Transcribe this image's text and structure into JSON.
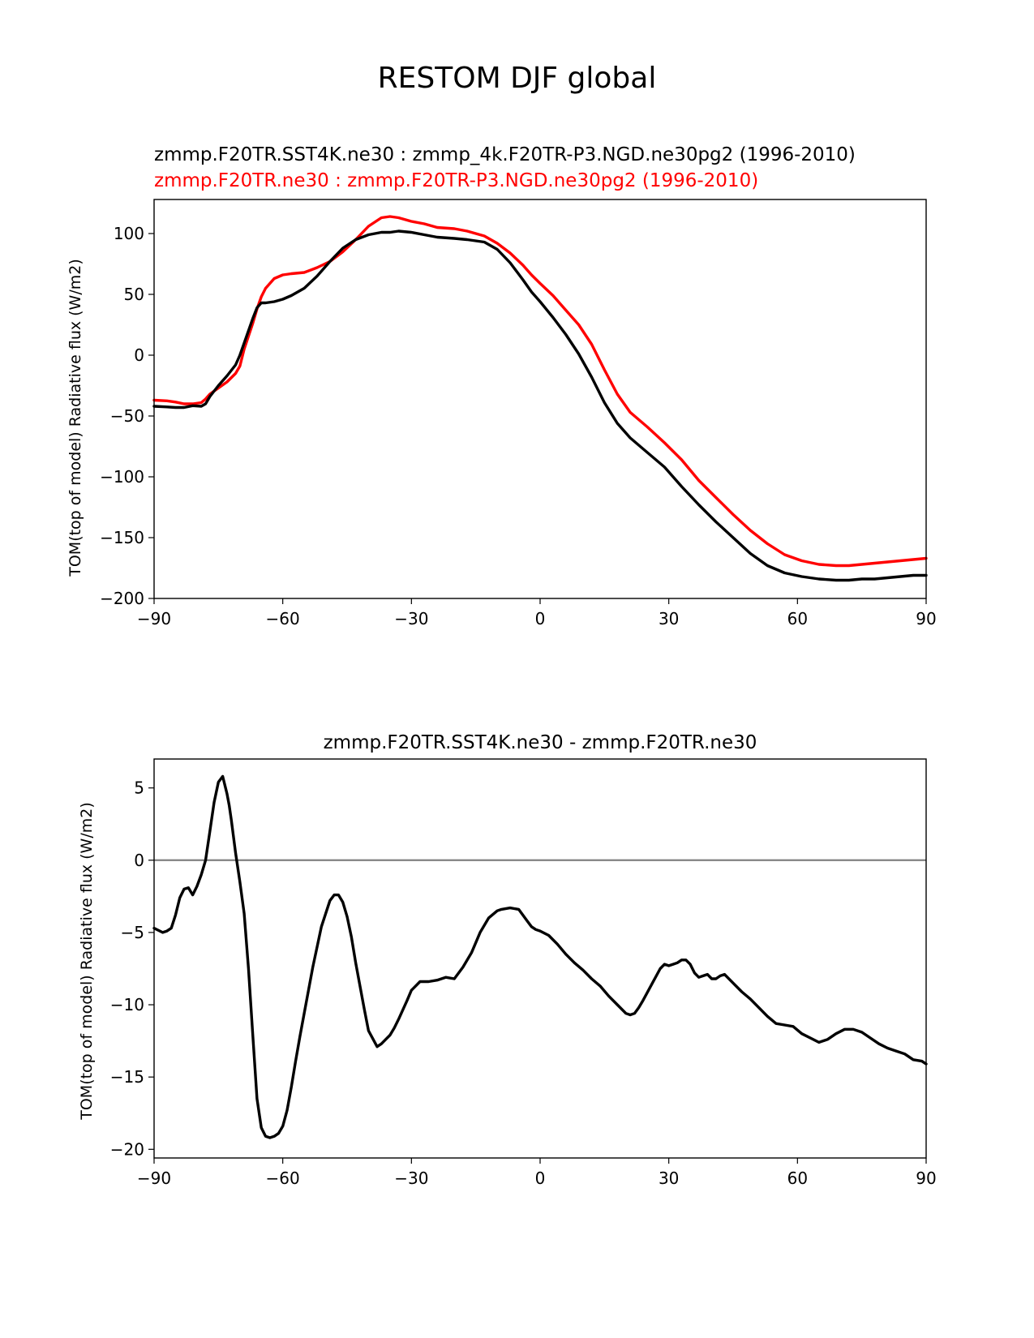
{
  "figure_title": "RESTOM DJF global",
  "colors": {
    "test": "#000000",
    "ref": "#ff0000",
    "zero_line": "#808080"
  },
  "chart_data": [
    {
      "type": "line",
      "subtitle_test": "zmmp.F20TR.SST4K.ne30 : zmmp_4k.F20TR-P3.NGD.ne30pg2 (1996-2010)",
      "subtitle_ref": "zmmp.F20TR.ne30 : zmmp.F20TR-P3.NGD.ne30pg2 (1996-2010)",
      "xlabel": "",
      "ylabel": "TOM(top of model) Radiative flux (W/m2)",
      "xlim": [
        -90,
        90
      ],
      "ylim": [
        -200,
        128
      ],
      "xticks": [
        "−90",
        "−60",
        "−30",
        "0",
        "30",
        "60",
        "90"
      ],
      "xtick_values": [
        -90,
        -60,
        -30,
        0,
        30,
        60,
        90
      ],
      "yticks": [
        "100",
        "50",
        "0",
        "−50",
        "−100",
        "−150",
        "−200"
      ],
      "ytick_values": [
        100,
        50,
        0,
        -50,
        -100,
        -150,
        -200
      ],
      "series": [
        {
          "name": "zmmp.F20TR.ne30",
          "color": "#ff0000",
          "x": [
            -90,
            -87,
            -85,
            -83,
            -81,
            -79,
            -78,
            -77,
            -75,
            -73,
            -71,
            -70,
            -69,
            -67,
            -66,
            -65,
            -64,
            -62,
            -60,
            -58,
            -55,
            -52,
            -49,
            -46,
            -43,
            -40,
            -37,
            -35,
            -33,
            -30,
            -27,
            -24,
            -20,
            -17,
            -13,
            -10,
            -7,
            -4,
            -2,
            0,
            3,
            6,
            9,
            12,
            15,
            18,
            21,
            25,
            29,
            33,
            37,
            41,
            45,
            49,
            53,
            57,
            61,
            65,
            69,
            72,
            75,
            78,
            81,
            84,
            87,
            90
          ],
          "values": [
            -37,
            -37.5,
            -38.5,
            -40,
            -40,
            -39,
            -36,
            -32,
            -27,
            -22,
            -15,
            -9,
            5,
            26,
            38,
            48,
            55,
            63,
            66,
            67,
            68,
            72,
            77,
            85,
            95,
            106,
            113,
            114,
            113,
            110,
            108,
            105,
            104,
            102,
            98,
            92,
            84,
            74,
            66,
            59,
            49,
            37,
            25,
            9,
            -12,
            -32,
            -47,
            -59,
            -72,
            -86,
            -103,
            -117,
            -131,
            -144,
            -155,
            -164,
            -169,
            -172,
            -173,
            -173,
            -172,
            -171,
            -170,
            -169,
            -168,
            -167
          ]
        },
        {
          "name": "zmmp.F20TR.SST4K.ne30",
          "color": "#000000",
          "x": [
            -90,
            -87,
            -85,
            -83,
            -81,
            -79,
            -78,
            -77,
            -75,
            -73,
            -71,
            -70,
            -69,
            -67,
            -66,
            -65,
            -64,
            -62,
            -60,
            -58,
            -55,
            -52,
            -49,
            -46,
            -43,
            -40,
            -37,
            -35,
            -33,
            -30,
            -27,
            -24,
            -20,
            -17,
            -13,
            -10,
            -7,
            -4,
            -2,
            0,
            3,
            6,
            9,
            12,
            15,
            18,
            21,
            25,
            29,
            33,
            37,
            41,
            45,
            49,
            53,
            57,
            61,
            65,
            69,
            72,
            75,
            78,
            81,
            84,
            87,
            90
          ],
          "values": [
            -42,
            -42.5,
            -43,
            -43,
            -41.5,
            -42,
            -40,
            -34,
            -25,
            -17,
            -8,
            0,
            10,
            30,
            39,
            43,
            43,
            44,
            46,
            49,
            55,
            65,
            77,
            88,
            95,
            99,
            101,
            101,
            102,
            101,
            99,
            97,
            96,
            95,
            93,
            87,
            76,
            62,
            52,
            44,
            31,
            17,
            1,
            -18,
            -39,
            -56,
            -68,
            -80,
            -92,
            -108,
            -123,
            -137,
            -150,
            -163,
            -173,
            -179,
            -182,
            -184,
            -185,
            -185,
            -184,
            -184,
            -183,
            -182,
            -181,
            -181
          ]
        }
      ]
    },
    {
      "type": "line",
      "title": "zmmp.F20TR.SST4K.ne30 - zmmp.F20TR.ne30",
      "xlabel": "",
      "ylabel": "TOM(top of model) Radiative flux (W/m2)",
      "xlim": [
        -90,
        90
      ],
      "ylim": [
        -20.6,
        7
      ],
      "xticks": [
        "−90",
        "−60",
        "−30",
        "0",
        "30",
        "60",
        "90"
      ],
      "xtick_values": [
        -90,
        -60,
        -30,
        0,
        30,
        60,
        90
      ],
      "yticks": [
        "5",
        "0",
        "−5",
        "−10",
        "−15",
        "−20"
      ],
      "ytick_values": [
        5,
        0,
        -5,
        -10,
        -15,
        -20
      ],
      "zero_line": 0,
      "series": [
        {
          "name": "zmmp.F20TR.SST4K.ne30 - zmmp.F20TR.ne30",
          "color": "#000000",
          "x": [
            -90,
            -88,
            -87,
            -86,
            -85,
            -84,
            -83,
            -82,
            -81,
            -80,
            -79,
            -78,
            -77,
            -76,
            -75,
            -74,
            -73,
            -72.5,
            -72,
            -71,
            -70,
            -69,
            -68,
            -67,
            -66,
            -65,
            -64,
            -63,
            -62,
            -61,
            -60,
            -59,
            -58,
            -57,
            -56,
            -55,
            -53,
            -51,
            -49,
            -48,
            -47,
            -46,
            -45,
            -44,
            -43,
            -42,
            -41,
            -40,
            -38,
            -37,
            -36,
            -35,
            -34,
            -33,
            -31,
            -30,
            -28,
            -26,
            -24,
            -22,
            -20,
            -18,
            -16,
            -14,
            -12,
            -10,
            -9,
            -7,
            -5,
            -4,
            -3,
            -2,
            -1,
            0,
            2,
            4,
            6,
            8,
            10,
            12,
            14,
            16,
            18,
            20,
            21,
            22,
            23,
            24,
            26,
            28,
            29,
            30,
            31,
            32,
            33,
            34,
            35,
            36,
            37,
            38,
            39,
            40,
            41,
            42,
            43,
            45,
            47,
            49,
            51,
            53,
            55,
            57,
            59,
            61,
            63,
            65,
            67,
            69,
            71,
            73,
            75,
            77,
            79,
            81,
            83,
            85,
            87,
            89,
            90
          ],
          "values": [
            -4.7,
            -5,
            -4.9,
            -4.7,
            -3.8,
            -2.6,
            -2,
            -1.9,
            -2.4,
            -1.8,
            -1,
            0,
            2,
            4,
            5.4,
            5.8,
            4.6,
            3.8,
            2.8,
            0.5,
            -1.5,
            -3.7,
            -7.5,
            -12,
            -16.5,
            -18.5,
            -19.1,
            -19.2,
            -19.1,
            -18.9,
            -18.4,
            -17.3,
            -15.7,
            -13.9,
            -12.2,
            -10.6,
            -7.4,
            -4.6,
            -2.8,
            -2.4,
            -2.4,
            -2.9,
            -3.9,
            -5.3,
            -7.1,
            -8.7,
            -10.3,
            -11.8,
            -12.9,
            -12.7,
            -12.4,
            -12.1,
            -11.6,
            -11,
            -9.7,
            -9,
            -8.4,
            -8.4,
            -8.3,
            -8.1,
            -8.2,
            -7.4,
            -6.4,
            -5,
            -4,
            -3.5,
            -3.4,
            -3.3,
            -3.4,
            -3.8,
            -4.2,
            -4.6,
            -4.8,
            -4.9,
            -5.2,
            -5.8,
            -6.5,
            -7.1,
            -7.6,
            -8.2,
            -8.7,
            -9.4,
            -10,
            -10.6,
            -10.7,
            -10.6,
            -10.2,
            -9.7,
            -8.6,
            -7.5,
            -7.2,
            -7.3,
            -7.2,
            -7.1,
            -6.9,
            -6.9,
            -7.2,
            -7.8,
            -8.1,
            -8,
            -7.9,
            -8.2,
            -8.2,
            -8,
            -7.9,
            -8.5,
            -9.1,
            -9.6,
            -10.2,
            -10.8,
            -11.3,
            -11.4,
            -11.5,
            -12,
            -12.3,
            -12.6,
            -12.4,
            -12,
            -11.7,
            -11.7,
            -11.9,
            -12.3,
            -12.7,
            -13,
            -13.2,
            -13.4,
            -13.8,
            -13.9,
            -14.1
          ]
        }
      ]
    }
  ]
}
